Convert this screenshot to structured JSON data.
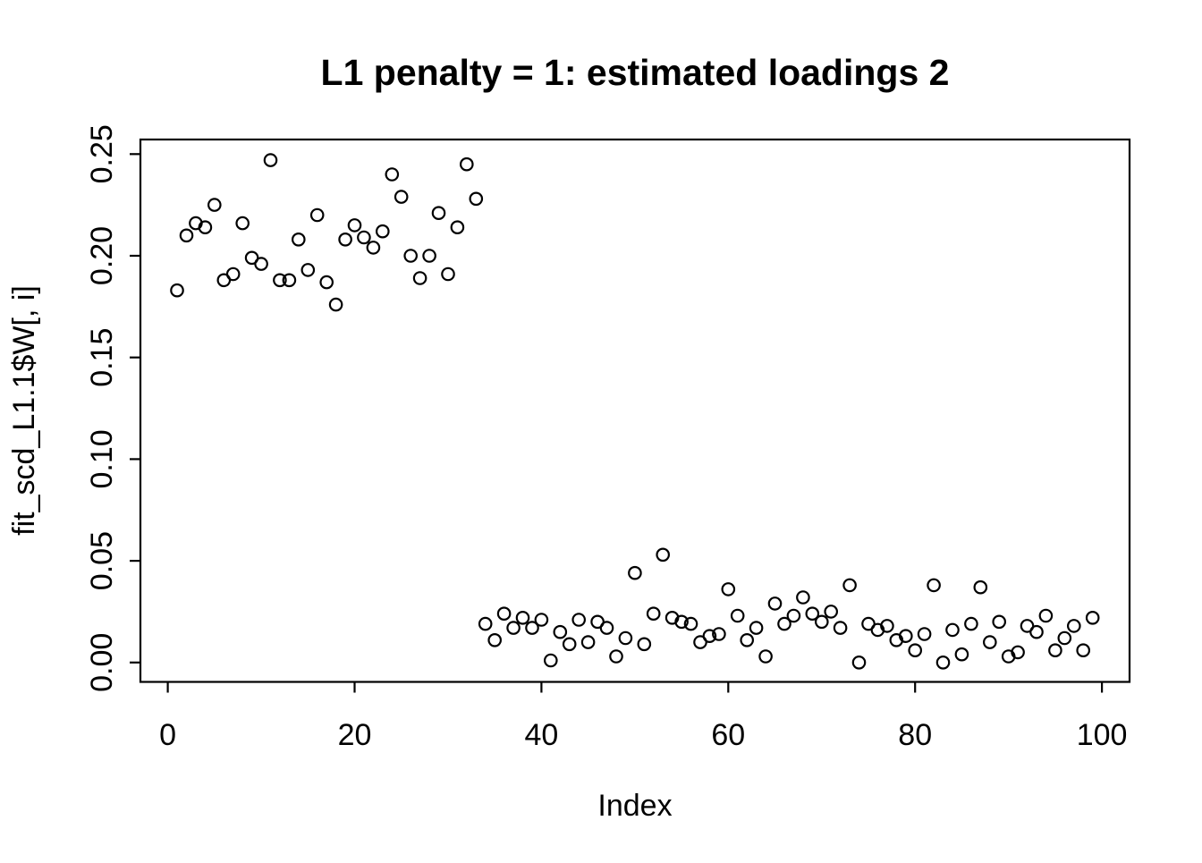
{
  "chart_data": {
    "type": "scatter",
    "title": "L1 penalty = 1: estimated loadings 2",
    "xlabel": "Index",
    "ylabel": "fit_scd_L1.1$W[, i]",
    "xlim": [
      -2.92,
      102.92
    ],
    "ylim": [
      -0.0096,
      0.2567
    ],
    "grid": false,
    "legend": "none",
    "marker": "open-circle",
    "marker_color": "#000000",
    "background_color": "#ffffff",
    "x_ticks": {
      "values": [
        0,
        20,
        40,
        60,
        80,
        100
      ],
      "labels": [
        "0",
        "20",
        "40",
        "60",
        "80",
        "100"
      ]
    },
    "y_ticks": {
      "values": [
        0.0,
        0.05,
        0.1,
        0.15,
        0.2,
        0.25
      ],
      "labels": [
        "0.00",
        "0.05",
        "0.10",
        "0.15",
        "0.20",
        "0.25"
      ]
    },
    "x": [
      1,
      2,
      3,
      4,
      5,
      6,
      7,
      8,
      9,
      10,
      11,
      12,
      13,
      14,
      15,
      16,
      17,
      18,
      19,
      20,
      21,
      22,
      23,
      24,
      25,
      26,
      27,
      28,
      29,
      30,
      31,
      32,
      33,
      34,
      35,
      36,
      37,
      38,
      39,
      40,
      41,
      42,
      43,
      44,
      45,
      46,
      47,
      48,
      49,
      50,
      51,
      52,
      53,
      54,
      55,
      56,
      57,
      58,
      59,
      60,
      61,
      62,
      63,
      64,
      65,
      66,
      67,
      68,
      69,
      70,
      71,
      72,
      73,
      74,
      75,
      76,
      77,
      78,
      79,
      80,
      81,
      82,
      83,
      84,
      85,
      86,
      87,
      88,
      89,
      90,
      91,
      92,
      93,
      94,
      95,
      96,
      97,
      98,
      99
    ],
    "y": [
      0.183,
      0.21,
      0.216,
      0.214,
      0.225,
      0.188,
      0.191,
      0.216,
      0.199,
      0.196,
      0.247,
      0.188,
      0.188,
      0.208,
      0.193,
      0.22,
      0.187,
      0.176,
      0.208,
      0.215,
      0.209,
      0.204,
      0.212,
      0.24,
      0.229,
      0.2,
      0.189,
      0.2,
      0.221,
      0.191,
      0.214,
      0.245,
      0.228,
      0.019,
      0.011,
      0.024,
      0.017,
      0.022,
      0.017,
      0.021,
      0.001,
      0.015,
      0.009,
      0.021,
      0.01,
      0.02,
      0.017,
      0.003,
      0.012,
      0.044,
      0.009,
      0.024,
      0.053,
      0.022,
      0.02,
      0.019,
      0.01,
      0.013,
      0.014,
      0.036,
      0.023,
      0.011,
      0.017,
      0.003,
      0.029,
      0.019,
      0.023,
      0.032,
      0.024,
      0.02,
      0.025,
      0.017,
      0.038,
      0.0,
      0.019,
      0.016,
      0.018,
      0.011,
      0.013,
      0.006,
      0.014,
      0.038,
      0.0,
      0.016,
      0.004,
      0.019,
      0.037,
      0.01,
      0.02,
      0.003,
      0.005,
      0.018,
      0.015,
      0.023,
      0.006,
      0.012,
      0.018,
      0.006,
      0.022
    ]
  }
}
